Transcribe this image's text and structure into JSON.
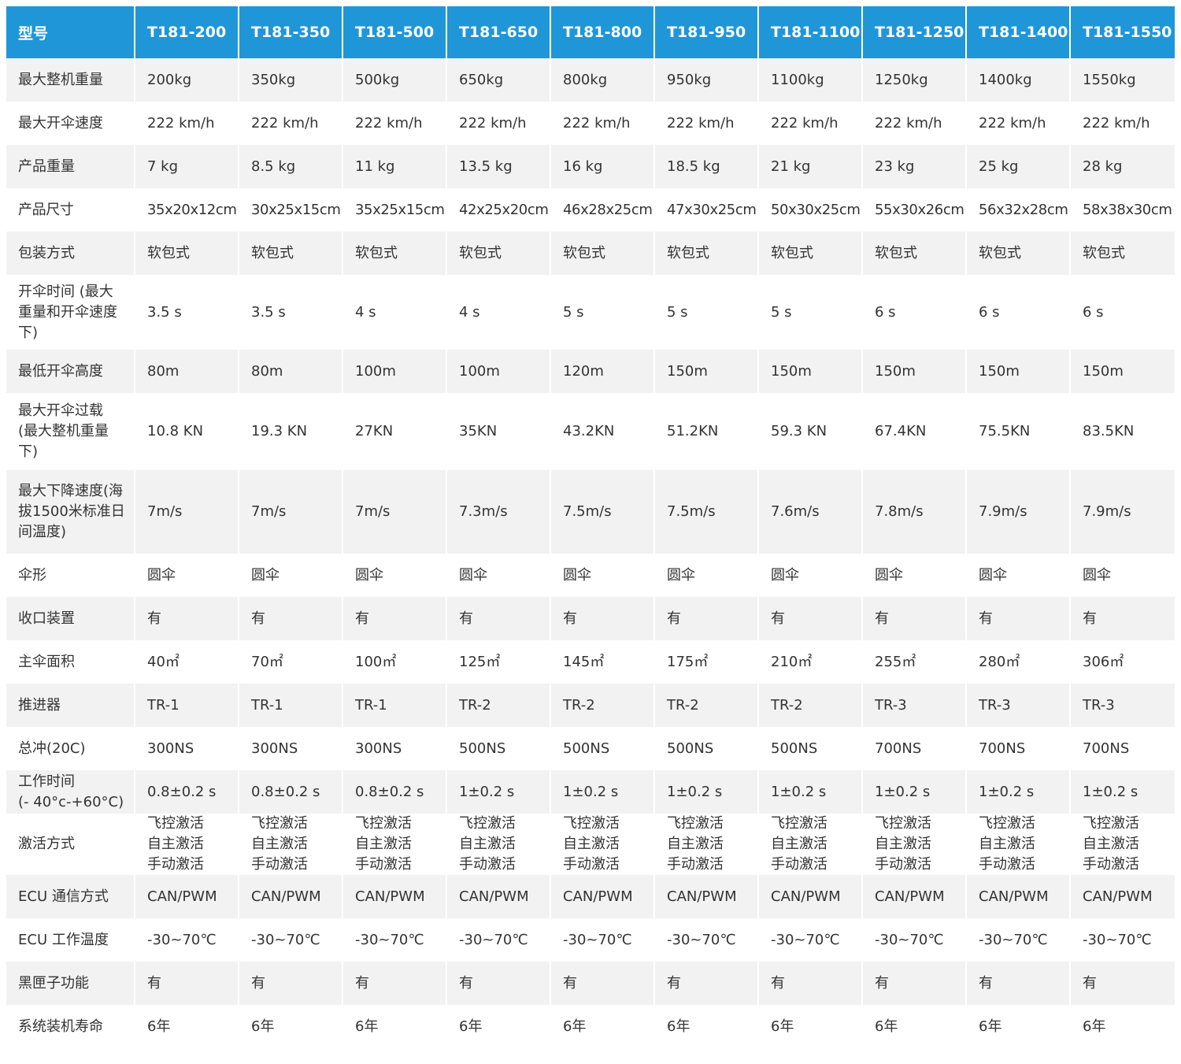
{
  "header": {
    "label": "型号",
    "models": [
      "T181-200",
      "T181-350",
      "T181-500",
      "T181-650",
      "T181-800",
      "T181-950",
      "T181-1100",
      "T181-1250",
      "T181-1400",
      "T181-1550"
    ]
  },
  "rows": [
    {
      "label": "最大整机重量",
      "values": [
        "200kg",
        "350kg",
        "500kg",
        "650kg",
        "800kg",
        "950kg",
        "1100kg",
        "1250kg",
        "1400kg",
        "1550kg"
      ]
    },
    {
      "label": "最大开伞速度",
      "values": [
        "222 km/h",
        "222 km/h",
        "222 km/h",
        "222 km/h",
        "222 km/h",
        "222 km/h",
        "222 km/h",
        "222 km/h",
        "222 km/h",
        "222 km/h"
      ]
    },
    {
      "label": "产品重量",
      "values": [
        "7 kg",
        "8.5 kg",
        "11 kg",
        "13.5 kg",
        "16 kg",
        "18.5 kg",
        "21 kg",
        "23 kg",
        "25 kg",
        "28 kg"
      ]
    },
    {
      "label": "产品尺寸",
      "values": [
        "35x20x12cm",
        "30x25x15cm",
        "35x25x15cm",
        "42x25x20cm",
        "46x28x25cm",
        "47x30x25cm",
        "50x30x25cm",
        "55x30x26cm",
        "56x32x28cm",
        "58x38x30cm"
      ]
    },
    {
      "label": "包装方式",
      "values": [
        "软包式",
        "软包式",
        "软包式",
        "软包式",
        "软包式",
        "软包式",
        "软包式",
        "软包式",
        "软包式",
        "软包式"
      ]
    },
    {
      "label": "开伞时间 (最大\n重量和开伞速度\n下)",
      "values": [
        "3.5 s",
        "3.5 s",
        "4 s",
        "4 s",
        "5 s",
        "5 s",
        "5 s",
        "6 s",
        "6 s",
        "6 s"
      ]
    },
    {
      "label": "最低开伞高度",
      "values": [
        "80m",
        "80m",
        "100m",
        "100m",
        "120m",
        "150m",
        "150m",
        "150m",
        "150m",
        "150m"
      ]
    },
    {
      "label": "最大开伞过载\n(最大整机重量\n下)",
      "values": [
        "10.8 KN",
        "19.3 KN",
        "27KN",
        "35KN",
        "43.2KN",
        "51.2KN",
        "59.3 KN",
        "67.4KN",
        "75.5KN",
        "83.5KN"
      ]
    },
    {
      "label": "最大下降速度(海\n拔1500米标准日\n间温度)",
      "values": [
        "7m/s",
        "7m/s",
        "7m/s",
        "7.3m/s",
        "7.5m/s",
        "7.5m/s",
        "7.6m/s",
        "7.8m/s",
        "7.9m/s",
        "7.9m/s"
      ]
    },
    {
      "label": "伞形",
      "values": [
        "圆伞",
        "圆伞",
        "圆伞",
        "圆伞",
        "圆伞",
        "圆伞",
        "圆伞",
        "圆伞",
        "圆伞",
        "圆伞"
      ]
    },
    {
      "label": "收口装置",
      "values": [
        "有",
        "有",
        "有",
        "有",
        "有",
        "有",
        "有",
        "有",
        "有",
        "有"
      ]
    },
    {
      "label": "主伞面积",
      "values": [
        "40㎡",
        "70㎡",
        "100㎡",
        "125㎡",
        "145㎡",
        "175㎡",
        "210㎡",
        "255㎡",
        "280㎡",
        "306㎡"
      ]
    },
    {
      "label": "推进器",
      "values": [
        "TR-1",
        "TR-1",
        "TR-1",
        "TR-2",
        "TR-2",
        "TR-2",
        "TR-2",
        "TR-3",
        "TR-3",
        "TR-3"
      ]
    },
    {
      "label": "总冲(20C)",
      "values": [
        "300NS",
        "300NS",
        "300NS",
        "500NS",
        "500NS",
        "500NS",
        "500NS",
        "700NS",
        "700NS",
        "700NS"
      ]
    },
    {
      "label": "工作时间\n(- 40°c-+60°C)",
      "values": [
        "0.8±0.2 s",
        "0.8±0.2 s",
        "0.8±0.2 s",
        "1±0.2 s",
        "1±0.2 s",
        "1±0.2 s",
        "1±0.2 s",
        "1±0.2 s",
        "1±0.2 s",
        "1±0.2 s"
      ]
    },
    {
      "label": "激活方式",
      "values": [
        "飞控激活\n自主激活\n手动激活",
        "飞控激活\n自主激活\n手动激活",
        "飞控激活\n自主激活\n手动激活",
        "飞控激活\n自主激活\n手动激活",
        "飞控激活\n自主激活\n手动激活",
        "飞控激活\n自主激活\n手动激活",
        "飞控激活\n自主激活\n手动激活",
        "飞控激活\n自主激活\n手动激活",
        "飞控激活\n自主激活\n手动激活",
        "飞控激活\n自主激活\n手动激活"
      ]
    },
    {
      "label": "ECU 通信方式",
      "values": [
        "CAN/PWM",
        "CAN/PWM",
        "CAN/PWM",
        "CAN/PWM",
        "CAN/PWM",
        "CAN/PWM",
        "CAN/PWM",
        "CAN/PWM",
        "CAN/PWM",
        "CAN/PWM"
      ]
    },
    {
      "label": "ECU 工作温度",
      "values": [
        "-30~70℃",
        "-30~70℃",
        "-30~70℃",
        "-30~70℃",
        "-30~70℃",
        "-30~70℃",
        "-30~70℃",
        "-30~70℃",
        "-30~70℃",
        "-30~70℃"
      ]
    },
    {
      "label": "黑匣子功能",
      "values": [
        "有",
        "有",
        "有",
        "有",
        "有",
        "有",
        "有",
        "有",
        "有",
        "有"
      ]
    },
    {
      "label": "系统装机寿命",
      "values": [
        "6年",
        "6年",
        "6年",
        "6年",
        "6年",
        "6年",
        "6年",
        "6年",
        "6年",
        "6年"
      ]
    }
  ],
  "colors": {
    "header_bg": "#1f96d8",
    "header_text": "#ffffff",
    "row_alt_bg": "#f2f2f2",
    "text": "#333333"
  }
}
